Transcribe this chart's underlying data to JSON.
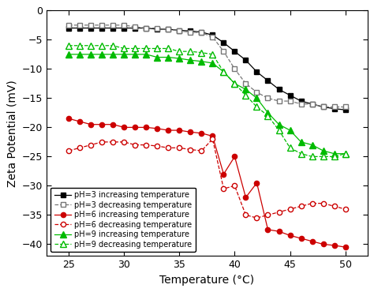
{
  "xlabel": "Temperature (°C)",
  "ylabel": "Zeta Potential (mV)",
  "xlim": [
    23,
    52
  ],
  "ylim": [
    -42,
    0
  ],
  "xticks": [
    25,
    30,
    35,
    40,
    45,
    50
  ],
  "yticks": [
    0,
    -5,
    -10,
    -15,
    -20,
    -25,
    -30,
    -35,
    -40
  ],
  "pH3_inc_T": [
    25,
    26,
    27,
    28,
    29,
    30,
    31,
    32,
    33,
    34,
    35,
    36,
    37,
    38,
    39,
    40,
    41,
    42,
    43,
    44,
    45,
    46,
    47,
    48,
    49,
    50
  ],
  "pH3_inc_Z": [
    -3.0,
    -3.0,
    -3.0,
    -3.0,
    -3.0,
    -3.0,
    -3.0,
    -3.0,
    -3.2,
    -3.2,
    -3.4,
    -3.5,
    -3.7,
    -4.2,
    -5.5,
    -7.0,
    -8.5,
    -10.5,
    -12.0,
    -13.5,
    -14.5,
    -15.5,
    -16.0,
    -16.5,
    -16.8,
    -17.0
  ],
  "pH3_dec_T": [
    25,
    26,
    27,
    28,
    29,
    30,
    31,
    32,
    33,
    34,
    35,
    36,
    37,
    38,
    39,
    40,
    41,
    42,
    43,
    44,
    45,
    46,
    47,
    48,
    49,
    50
  ],
  "pH3_dec_Z": [
    -2.5,
    -2.5,
    -2.5,
    -2.5,
    -2.5,
    -2.5,
    -2.8,
    -3.0,
    -3.0,
    -3.2,
    -3.5,
    -3.7,
    -3.8,
    -4.5,
    -7.0,
    -10.0,
    -12.5,
    -14.0,
    -15.0,
    -15.5,
    -15.5,
    -16.0,
    -16.0,
    -16.5,
    -16.5,
    -16.5
  ],
  "pH6_inc_T": [
    25,
    26,
    27,
    28,
    29,
    30,
    31,
    32,
    33,
    34,
    35,
    36,
    37,
    38,
    39,
    40,
    41,
    42,
    43,
    44,
    45,
    46,
    47,
    48,
    49,
    50
  ],
  "pH6_inc_Z": [
    -18.5,
    -19.0,
    -19.5,
    -19.5,
    -19.5,
    -20.0,
    -20.0,
    -20.0,
    -20.2,
    -20.5,
    -20.5,
    -20.8,
    -21.0,
    -21.5,
    -28.0,
    -25.0,
    -32.0,
    -29.5,
    -37.5,
    -37.8,
    -38.5,
    -39.0,
    -39.5,
    -40.0,
    -40.2,
    -40.5
  ],
  "pH6_dec_T": [
    25,
    26,
    27,
    28,
    29,
    30,
    31,
    32,
    33,
    34,
    35,
    36,
    37,
    38,
    39,
    40,
    41,
    42,
    43,
    44,
    45,
    46,
    47,
    48,
    49,
    50
  ],
  "pH6_dec_Z": [
    -24.0,
    -23.5,
    -23.0,
    -22.5,
    -22.5,
    -22.5,
    -23.0,
    -23.0,
    -23.2,
    -23.5,
    -23.5,
    -23.8,
    -24.0,
    -22.0,
    -30.5,
    -30.0,
    -35.0,
    -35.5,
    -35.0,
    -34.5,
    -34.0,
    -33.5,
    -33.0,
    -33.0,
    -33.5,
    -34.0
  ],
  "pH9_inc_T": [
    25,
    26,
    27,
    28,
    29,
    30,
    31,
    32,
    33,
    34,
    35,
    36,
    37,
    38,
    39,
    40,
    41,
    42,
    43,
    44,
    45,
    46,
    47,
    48,
    49,
    50
  ],
  "pH9_inc_Z": [
    -7.5,
    -7.5,
    -7.5,
    -7.5,
    -7.5,
    -7.5,
    -7.5,
    -7.5,
    -8.0,
    -8.0,
    -8.2,
    -8.5,
    -8.7,
    -9.0,
    -10.5,
    -12.5,
    -13.5,
    -15.0,
    -17.5,
    -19.5,
    -20.5,
    -22.5,
    -23.0,
    -24.0,
    -24.5,
    -24.5
  ],
  "pH9_dec_T": [
    25,
    26,
    27,
    28,
    29,
    30,
    31,
    32,
    33,
    34,
    35,
    36,
    37,
    38,
    39,
    40,
    41,
    42,
    43,
    44,
    45,
    46,
    47,
    48,
    49,
    50
  ],
  "pH9_dec_Z": [
    -6.0,
    -6.0,
    -6.0,
    -6.0,
    -6.0,
    -6.5,
    -6.5,
    -6.5,
    -6.5,
    -6.5,
    -7.0,
    -7.0,
    -7.2,
    -7.5,
    -10.5,
    -12.5,
    -14.5,
    -16.5,
    -18.0,
    -20.5,
    -23.5,
    -24.5,
    -25.0,
    -25.0,
    -25.0,
    -24.5
  ],
  "color_black": "#000000",
  "color_gray": "#777777",
  "color_red": "#cc0000",
  "color_green": "#00bb00",
  "legend_labels": [
    "pH=3 increasing temperature",
    "pH=3 decreasing temperature",
    "pH=6 increasing temperature",
    "pH=6 decreasing temperature",
    "pH=9 increasing temperature",
    "pH=9 decreasing temperature"
  ]
}
